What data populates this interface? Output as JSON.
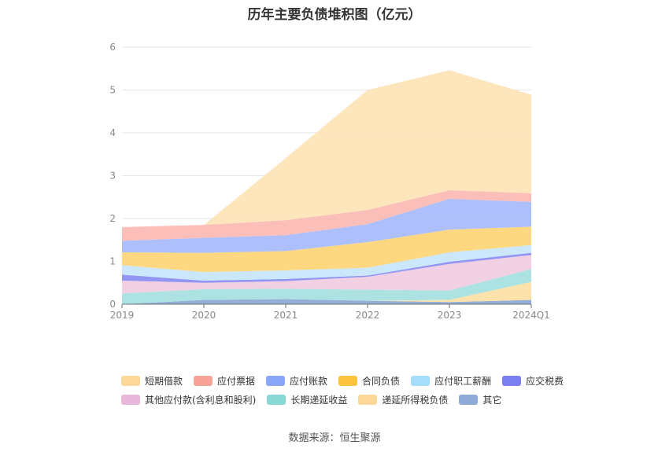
{
  "title": "历年主要负债堆积图（亿元）",
  "source_label": "数据来源：恒生聚源",
  "chart_data": {
    "type": "area",
    "stacked": true,
    "title": "历年主要负债堆积图（亿元）",
    "categories": [
      "2019",
      "2020",
      "2021",
      "2022",
      "2023",
      "2024Q1"
    ],
    "ylim": [
      0,
      6
    ],
    "yticks": [
      0,
      1,
      2,
      3,
      4,
      5,
      6
    ],
    "grid": true,
    "legend_position": "bottom",
    "series": [
      {
        "name": "其它",
        "color": "#8eaad6",
        "values": [
          0.0,
          0.1,
          0.12,
          0.08,
          0.05,
          0.1
        ]
      },
      {
        "name": "递延所得税负债",
        "color": "#fde0a8",
        "values": [
          0.0,
          0.0,
          0.0,
          0.0,
          0.05,
          0.42
        ]
      },
      {
        "name": "长期递延收益",
        "color": "#a8e2e0",
        "values": [
          0.25,
          0.25,
          0.24,
          0.26,
          0.22,
          0.3
        ]
      },
      {
        "name": "其他应付款(含利息和股利)",
        "color": "#f0cde3",
        "values": [
          0.3,
          0.15,
          0.18,
          0.3,
          0.62,
          0.33
        ]
      },
      {
        "name": "应交税费",
        "color": "#8c8ff0",
        "values": [
          0.14,
          0.05,
          0.05,
          0.03,
          0.05,
          0.05
        ]
      },
      {
        "name": "应付职工薪酬",
        "color": "#c7e6fb",
        "values": [
          0.22,
          0.2,
          0.2,
          0.18,
          0.22,
          0.18
        ]
      },
      {
        "name": "合同负债",
        "color": "#fdd67a",
        "values": [
          0.3,
          0.45,
          0.45,
          0.6,
          0.53,
          0.43
        ]
      },
      {
        "name": "应付账款",
        "color": "#a9bdfb",
        "values": [
          0.27,
          0.35,
          0.37,
          0.42,
          0.72,
          0.58
        ]
      },
      {
        "name": "应付票据",
        "color": "#fbbab5",
        "values": [
          0.32,
          0.3,
          0.35,
          0.33,
          0.2,
          0.2
        ]
      },
      {
        "name": "短期借款",
        "color": "#fde4b8",
        "values": [
          0.0,
          0.0,
          1.45,
          2.8,
          2.8,
          2.3
        ]
      }
    ],
    "legend_order": [
      "短期借款",
      "应付票据",
      "应付账款",
      "合同负债",
      "应付职工薪酬",
      "应交税费",
      "其他应付款(含利息和股利)",
      "长期递延收益",
      "递延所得税负债",
      "其它"
    ],
    "legend_colors": [
      "#fdd898",
      "#f7a39a",
      "#8aa6f7",
      "#fdc43f",
      "#a6ddfb",
      "#7b7ff0",
      "#e8b8da",
      "#88d8d6",
      "#fdd898",
      "#8eaad6"
    ]
  }
}
